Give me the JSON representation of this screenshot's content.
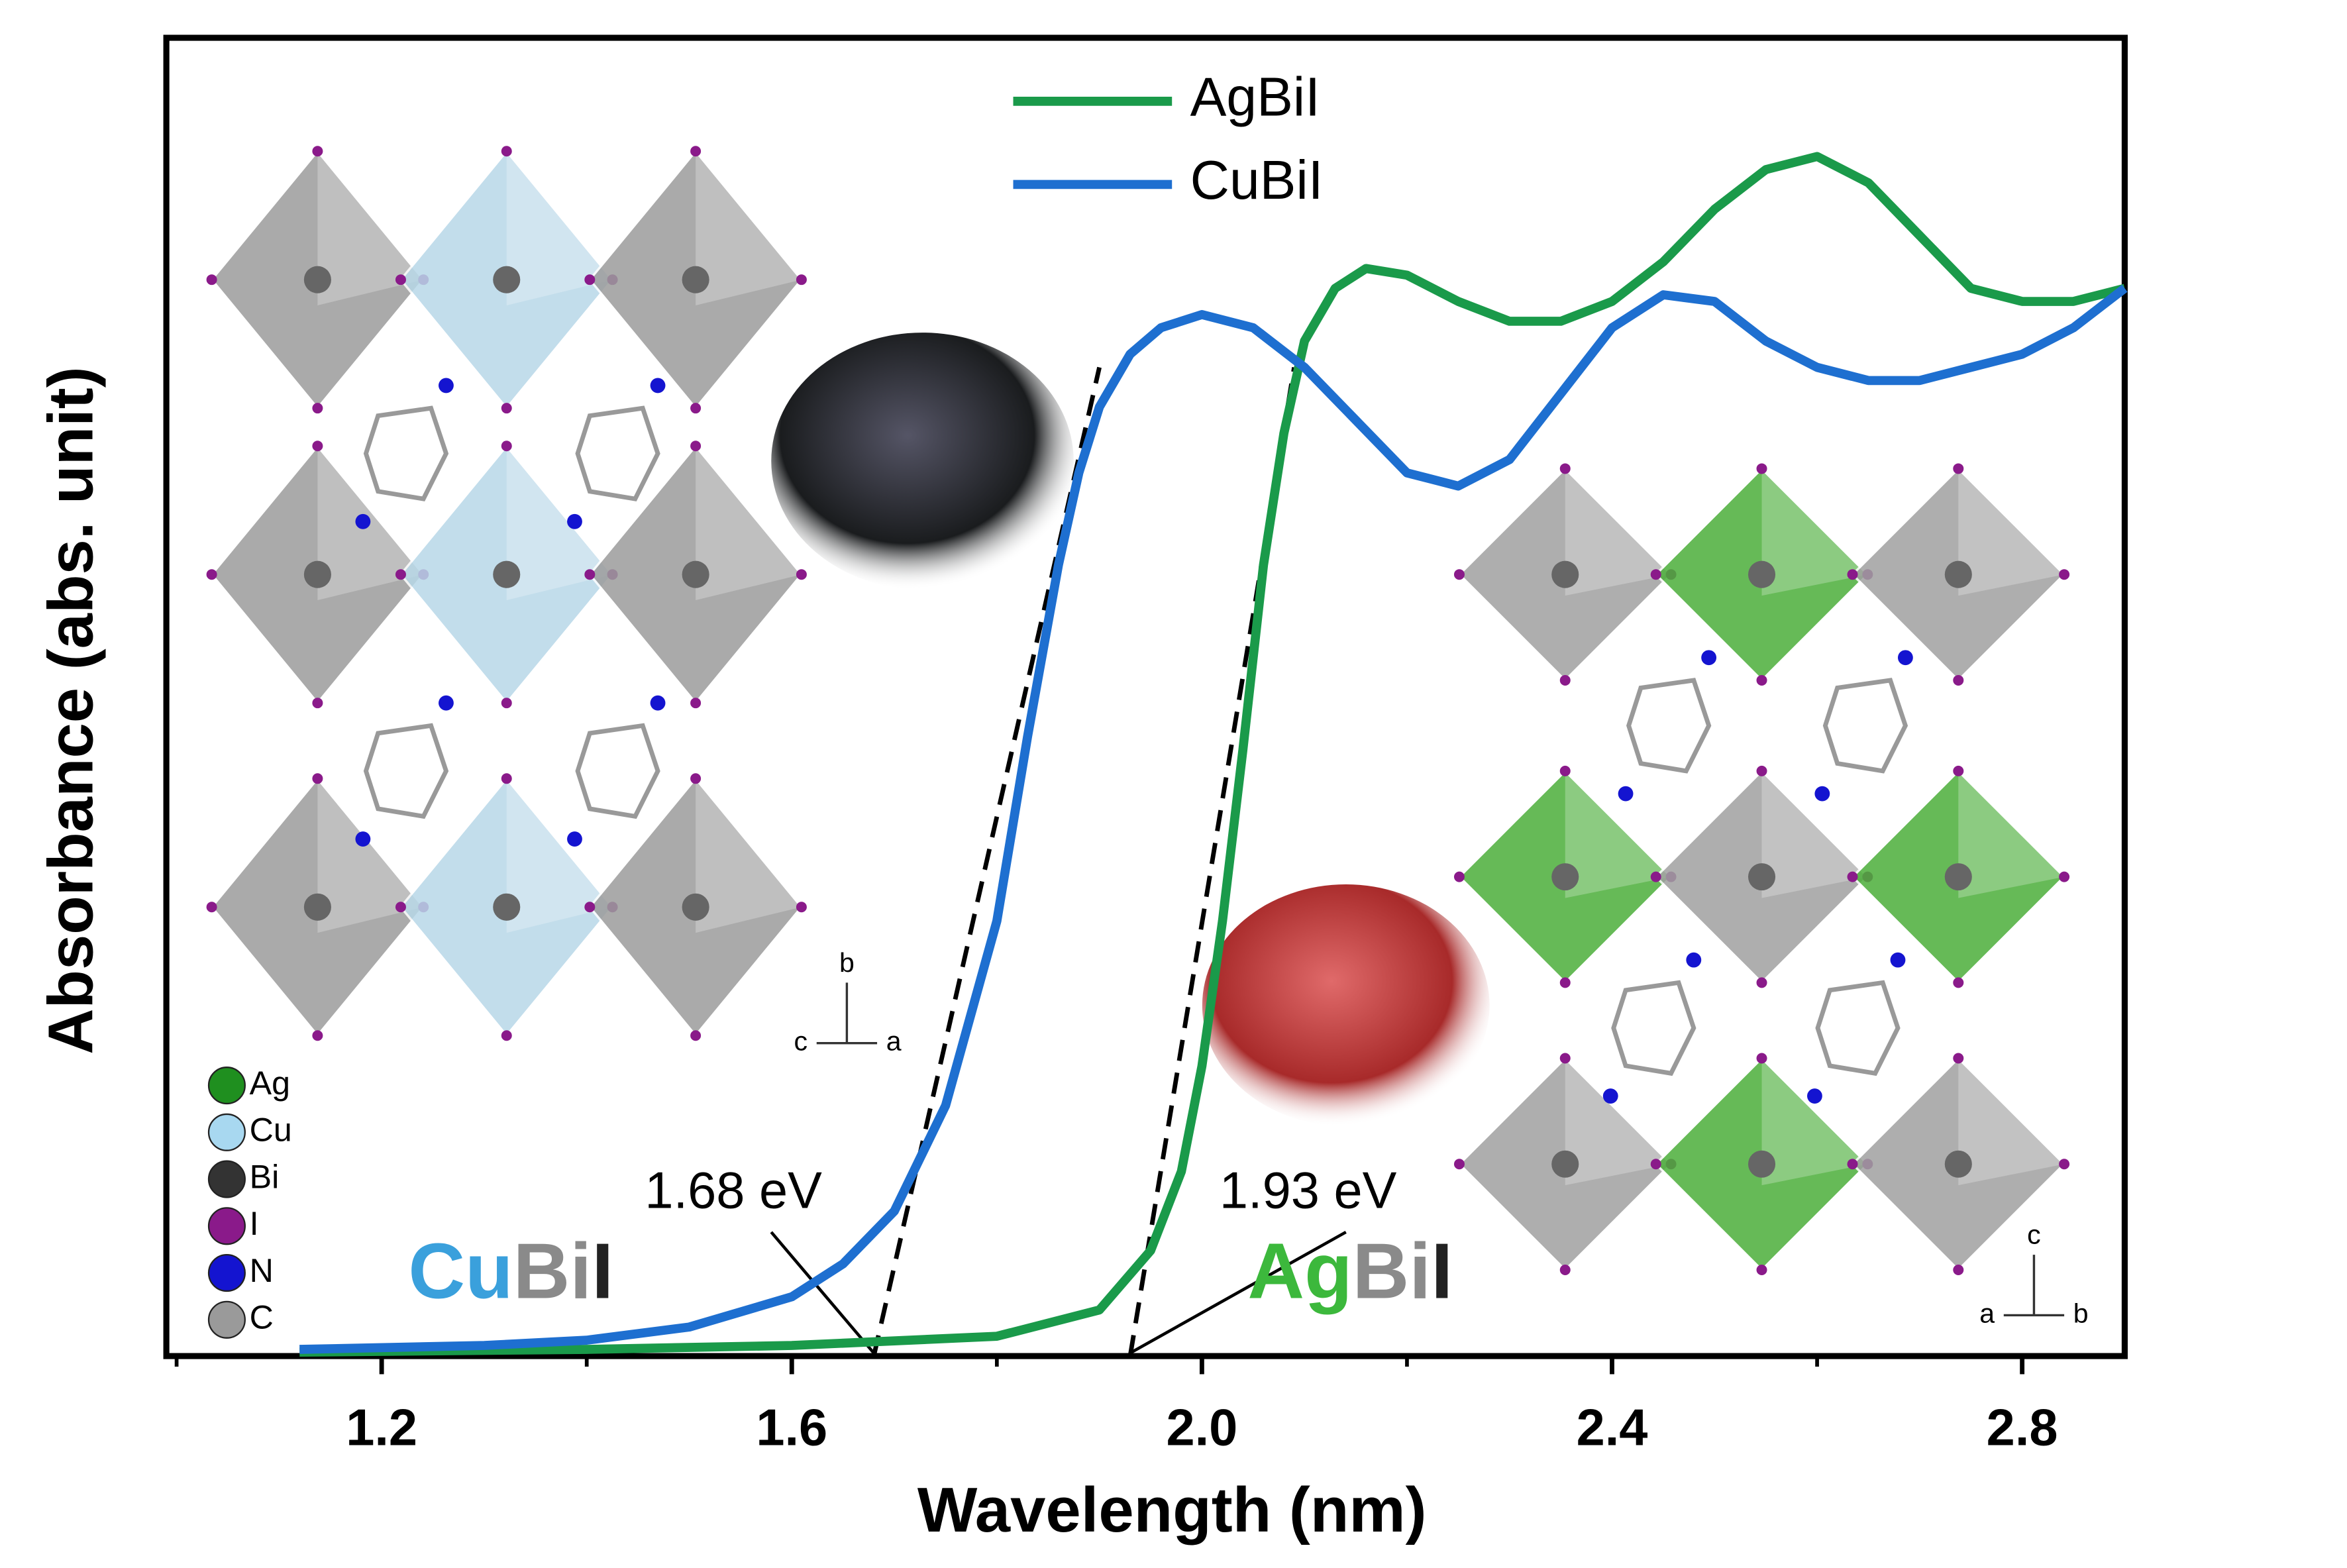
{
  "chart_data": {
    "type": "line",
    "xlabel": "Wavelength (nm)",
    "ylabel": "Absorbance (abs. unit)",
    "xlim": [
      0.99,
      2.9
    ],
    "ylim": [
      0,
      1
    ],
    "xticks": [
      1.2,
      1.6,
      {
        "value": 2,
        "label": "2.0"
      },
      2.4,
      2.8
    ],
    "xminor_ticks": [
      1.0,
      1.4,
      1.8,
      2.2,
      2.6
    ],
    "legend": "top",
    "series": [
      {
        "name": "AgBiI",
        "color": "#1a9a4a",
        "x": [
          1.12,
          1.4,
          1.6,
          1.8,
          1.9,
          1.95,
          1.98,
          2.0,
          2.02,
          2.04,
          2.06,
          2.08,
          2.1,
          2.13,
          2.16,
          2.2,
          2.25,
          2.3,
          2.35,
          2.4,
          2.45,
          2.5,
          2.55,
          2.6,
          2.65,
          2.7,
          2.75,
          2.8,
          2.85,
          2.9
        ],
        "values": [
          0.003,
          0.005,
          0.008,
          0.015,
          0.035,
          0.08,
          0.14,
          0.22,
          0.33,
          0.46,
          0.6,
          0.7,
          0.77,
          0.81,
          0.825,
          0.82,
          0.8,
          0.785,
          0.785,
          0.8,
          0.83,
          0.87,
          0.9,
          0.91,
          0.89,
          0.85,
          0.81,
          0.8,
          0.8,
          0.81
        ]
      },
      {
        "name": "CuBiI",
        "color": "#1e6fd0",
        "x": [
          1.12,
          1.3,
          1.4,
          1.5,
          1.6,
          1.65,
          1.7,
          1.75,
          1.8,
          1.83,
          1.86,
          1.88,
          1.9,
          1.93,
          1.96,
          2.0,
          2.05,
          2.1,
          2.15,
          2.2,
          2.25,
          2.3,
          2.35,
          2.4,
          2.45,
          2.5,
          2.55,
          2.6,
          2.65,
          2.7,
          2.75,
          2.8,
          2.85,
          2.9
        ],
        "values": [
          0.005,
          0.008,
          0.012,
          0.022,
          0.045,
          0.07,
          0.11,
          0.19,
          0.33,
          0.47,
          0.6,
          0.67,
          0.72,
          0.76,
          0.78,
          0.79,
          0.78,
          0.75,
          0.71,
          0.67,
          0.66,
          0.68,
          0.73,
          0.78,
          0.805,
          0.8,
          0.77,
          0.75,
          0.74,
          0.74,
          0.75,
          0.76,
          0.78,
          0.81
        ]
      }
    ],
    "annotations": [
      {
        "text": "1.68 eV",
        "x": 1.68,
        "tangent_end": [
          1.9,
          0.75
        ]
      },
      {
        "text": "1.93 eV",
        "x": 1.93,
        "tangent_end": [
          2.09,
          0.75
        ]
      }
    ],
    "compound_labels": [
      {
        "parts": [
          "Cu",
          "Bi",
          "I"
        ],
        "colors": [
          "#3aa0dc",
          "#8a8a8a",
          "#222222"
        ]
      },
      {
        "parts": [
          "Ag",
          "Bi",
          "I"
        ],
        "colors": [
          "#3cb83c",
          "#8a8a8a",
          "#222222"
        ]
      }
    ],
    "element_legend": [
      {
        "label": "Ag",
        "color": "#1f8f1f"
      },
      {
        "label": "Cu",
        "color": "#a8d8f0"
      },
      {
        "label": "Bi",
        "color": "#333333"
      },
      {
        "label": "I",
        "color": "#8a1a8a"
      },
      {
        "label": "N",
        "color": "#1414d0"
      },
      {
        "label": "C",
        "color": "#9a9a9a"
      }
    ],
    "axes_indicators": [
      {
        "up": "b",
        "left": "c",
        "right": "a"
      },
      {
        "up": "c",
        "left": "a",
        "right": "b"
      }
    ]
  }
}
